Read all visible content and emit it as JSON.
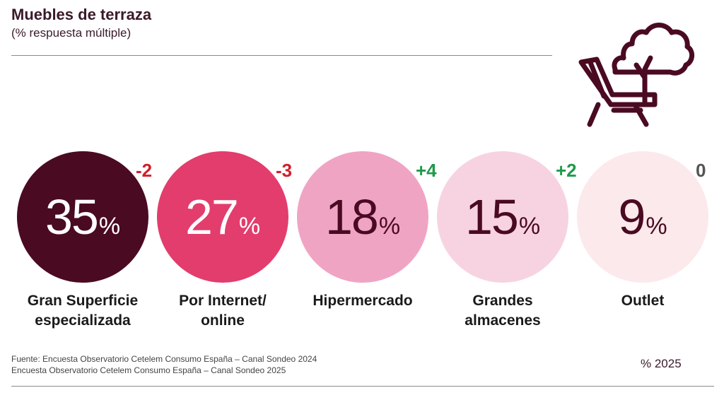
{
  "title": "Muebles de terraza",
  "subtitle": "(% respuesta múltiple)",
  "source_line1": "Fuente: Encuesta Observatorio Cetelem Consumo España – Canal Sondeo 2024",
  "source_line2": "Encuesta Observatorio Cetelem Consumo España – Canal Sondeo 2025",
  "legend": "% 2025",
  "icon": "terrace-chair-tree-icon",
  "chart_data": {
    "type": "bubble-percent",
    "title": "Muebles de terraza",
    "subtitle": "(% respuesta múltiple)",
    "series_name": "% 2025",
    "unit": "%",
    "items": [
      {
        "label_line1": "Gran Superficie",
        "label_line2": "especializada",
        "value": 35,
        "delta": "-2",
        "fill": "#4a0a22",
        "text_color": "#ffffff",
        "delta_color": "#d11f2a"
      },
      {
        "label_line1": "Por Internet/",
        "label_line2": "online",
        "value": 27,
        "delta": "-3",
        "fill": "#e23d6d",
        "text_color": "#ffffff",
        "delta_color": "#d11f2a"
      },
      {
        "label_line1": "Hipermercado",
        "label_line2": "",
        "value": 18,
        "delta": "+4",
        "fill": "#f0a4c4",
        "text_color": "#4a0a22",
        "delta_color": "#1f9a4a"
      },
      {
        "label_line1": "Grandes",
        "label_line2": "almacenes",
        "value": 15,
        "delta": "+2",
        "fill": "#f7d3e1",
        "text_color": "#4a0a22",
        "delta_color": "#1f9a4a"
      },
      {
        "label_line1": "Outlet",
        "label_line2": "",
        "value": 9,
        "delta": "0",
        "fill": "#fbe9ec",
        "text_color": "#4a0a22",
        "delta_color": "#555555"
      }
    ]
  }
}
